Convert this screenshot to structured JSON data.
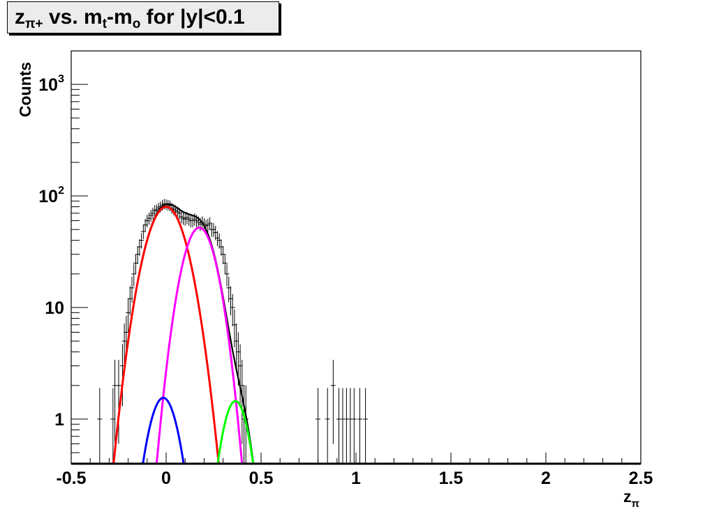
{
  "title": {
    "base": "z",
    "sub1": "π+",
    "mid": " vs. m",
    "sub2": "t",
    "mid2": "-m",
    "sub3": "o",
    "tail": " for |y|<0.1"
  },
  "chart_data": {
    "type": "scatter",
    "xlabel": {
      "base": "z",
      "sub": "π"
    },
    "ylabel": "Counts",
    "xlim": [
      -0.5,
      2.5
    ],
    "ylim": [
      0.38,
      2000
    ],
    "yscale": "log",
    "xticks": [
      -0.5,
      0,
      0.5,
      1,
      1.5,
      2,
      2.5
    ],
    "xtick_labels": [
      "-0.5",
      "0",
      "0.5",
      "1",
      "1.5",
      "2",
      "2.5"
    ],
    "yticks": [
      1,
      10,
      100,
      1000
    ],
    "ytick_labels": [
      {
        "base": "1",
        "sup": ""
      },
      {
        "base": "10",
        "sup": ""
      },
      {
        "base": "10",
        "sup": "2"
      },
      {
        "base": "10",
        "sup": "3"
      }
    ],
    "grid": false,
    "data_points": [
      [
        -0.35,
        1,
        0.9
      ],
      [
        -0.28,
        1,
        0.9
      ],
      [
        -0.27,
        2,
        1.4
      ],
      [
        -0.25,
        2,
        1.4
      ],
      [
        -0.23,
        3,
        1.7
      ],
      [
        -0.22,
        5,
        2.2
      ],
      [
        -0.21,
        6,
        2.4
      ],
      [
        -0.2,
        9,
        3.0
      ],
      [
        -0.19,
        12,
        3.5
      ],
      [
        -0.18,
        15,
        3.9
      ],
      [
        -0.17,
        20,
        4.5
      ],
      [
        -0.16,
        25,
        5.0
      ],
      [
        -0.15,
        30,
        5.5
      ],
      [
        -0.14,
        35,
        5.9
      ],
      [
        -0.13,
        40,
        6.3
      ],
      [
        -0.12,
        48,
        6.9
      ],
      [
        -0.11,
        55,
        7.4
      ],
      [
        -0.1,
        60,
        7.7
      ],
      [
        -0.09,
        63,
        7.9
      ],
      [
        -0.08,
        67,
        8.2
      ],
      [
        -0.07,
        70,
        8.4
      ],
      [
        -0.06,
        74,
        8.6
      ],
      [
        -0.05,
        75,
        8.7
      ],
      [
        -0.04,
        78,
        8.8
      ],
      [
        -0.03,
        80,
        8.9
      ],
      [
        -0.02,
        83,
        9.1
      ],
      [
        -0.01,
        85,
        9.2
      ],
      [
        0.0,
        84,
        9.2
      ],
      [
        0.01,
        83,
        9.1
      ],
      [
        0.02,
        82,
        9.1
      ],
      [
        0.03,
        78,
        8.8
      ],
      [
        0.04,
        76,
        8.7
      ],
      [
        0.05,
        74,
        8.6
      ],
      [
        0.06,
        72,
        8.5
      ],
      [
        0.07,
        70,
        8.4
      ],
      [
        0.08,
        65,
        8.1
      ],
      [
        0.09,
        63,
        7.9
      ],
      [
        0.1,
        62,
        7.9
      ],
      [
        0.11,
        64,
        8.0
      ],
      [
        0.12,
        62,
        7.9
      ],
      [
        0.13,
        60,
        7.7
      ],
      [
        0.14,
        60,
        7.7
      ],
      [
        0.15,
        62,
        7.9
      ],
      [
        0.16,
        60,
        7.7
      ],
      [
        0.17,
        58,
        7.6
      ],
      [
        0.18,
        56,
        7.5
      ],
      [
        0.19,
        58,
        7.6
      ],
      [
        0.2,
        56,
        7.5
      ],
      [
        0.21,
        54,
        7.3
      ],
      [
        0.22,
        55,
        7.4
      ],
      [
        0.23,
        57,
        7.5
      ],
      [
        0.24,
        50,
        7.1
      ],
      [
        0.25,
        50,
        7.1
      ],
      [
        0.26,
        47,
        6.9
      ],
      [
        0.27,
        42,
        6.5
      ],
      [
        0.28,
        40,
        6.3
      ],
      [
        0.29,
        35,
        5.9
      ],
      [
        0.3,
        30,
        5.5
      ],
      [
        0.31,
        25,
        5.0
      ],
      [
        0.32,
        20,
        4.5
      ],
      [
        0.33,
        15,
        3.9
      ],
      [
        0.34,
        12,
        3.5
      ],
      [
        0.35,
        10,
        3.2
      ],
      [
        0.36,
        7,
        2.6
      ],
      [
        0.37,
        5,
        2.2
      ],
      [
        0.38,
        4,
        2.0
      ],
      [
        0.39,
        3,
        1.7
      ],
      [
        0.4,
        2,
        1.4
      ],
      [
        0.41,
        1,
        1.0
      ],
      [
        0.42,
        1,
        1.0
      ],
      [
        0.8,
        1,
        0.9
      ],
      [
        0.85,
        1,
        0.9
      ],
      [
        0.88,
        2,
        1.4
      ],
      [
        0.91,
        1,
        0.9
      ],
      [
        0.93,
        1,
        0.9
      ],
      [
        0.95,
        1,
        0.9
      ],
      [
        0.97,
        1,
        0.9
      ],
      [
        0.99,
        1,
        0.9
      ],
      [
        1.02,
        1,
        0.9
      ],
      [
        1.05,
        1,
        0.9
      ]
    ],
    "series": [
      {
        "color": "#000000",
        "type": "total-fit"
      },
      {
        "color": "#ff0000",
        "amplitude": 80,
        "mean": 0.0,
        "sigma": 0.085
      },
      {
        "color": "#ff00ff",
        "amplitude": 52,
        "mean": 0.175,
        "sigma": 0.072
      },
      {
        "color": "#0000ff",
        "amplitude": 1.55,
        "mean": -0.015,
        "sigma": 0.065
      },
      {
        "color": "#00ff00",
        "amplitude": 1.45,
        "mean": 0.365,
        "sigma": 0.058
      }
    ]
  }
}
